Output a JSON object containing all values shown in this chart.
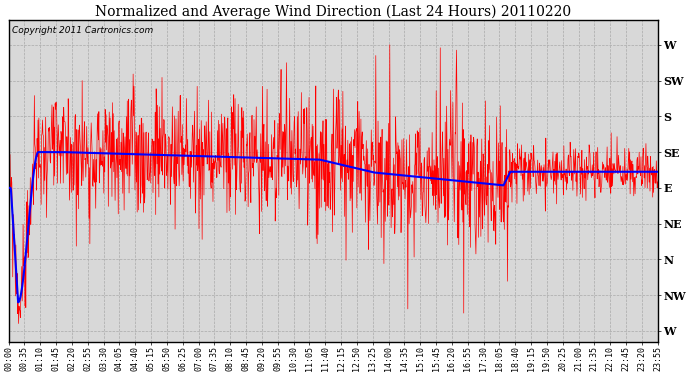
{
  "title": "Normalized and Average Wind Direction (Last 24 Hours) 20110220",
  "copyright": "Copyright 2011 Cartronics.com",
  "background_color": "#ffffff",
  "plot_bg_color": "#d8d8d8",
  "grid_color": "#aaaaaa",
  "y_labels": [
    "W",
    "SW",
    "S",
    "SE",
    "E",
    "NE",
    "N",
    "NW",
    "W"
  ],
  "y_values": [
    8,
    7,
    6,
    5,
    4,
    3,
    2,
    1,
    0
  ],
  "x_tick_labels": [
    "00:00",
    "00:35",
    "01:10",
    "01:45",
    "02:20",
    "02:55",
    "03:30",
    "04:05",
    "04:40",
    "05:15",
    "05:50",
    "06:25",
    "07:00",
    "07:35",
    "08:10",
    "08:45",
    "09:20",
    "09:55",
    "10:30",
    "11:05",
    "11:40",
    "12:15",
    "12:50",
    "13:25",
    "14:00",
    "14:35",
    "15:10",
    "15:45",
    "16:20",
    "16:55",
    "17:30",
    "18:05",
    "18:40",
    "19:15",
    "19:50",
    "20:25",
    "21:00",
    "21:35",
    "22:10",
    "22:45",
    "23:20",
    "23:55"
  ],
  "red_line_color": "#ff0000",
  "blue_line_color": "#0000ff",
  "title_fontsize": 10,
  "copyright_fontsize": 6.5,
  "tick_fontsize": 6,
  "ylabel_fontsize": 8,
  "noise_std": 0.65,
  "figwidth": 6.9,
  "figheight": 3.75,
  "dpi": 100
}
